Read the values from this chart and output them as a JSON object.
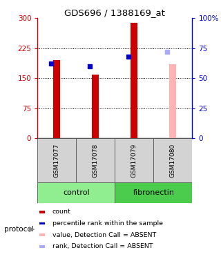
{
  "title": "GDS696 / 1388169_at",
  "samples": [
    "GSM17077",
    "GSM17078",
    "GSM17079",
    "GSM17080"
  ],
  "bar_values": [
    195,
    158,
    288,
    null
  ],
  "bar_color": "#cc0000",
  "absent_bar_values": [
    null,
    null,
    null,
    185
  ],
  "absent_bar_color": "#ffb3b3",
  "rank_values": [
    62,
    60,
    68,
    null
  ],
  "rank_absent_values": [
    null,
    null,
    null,
    72
  ],
  "rank_color": "#0000cc",
  "rank_absent_color": "#aaaaff",
  "ylim_left": [
    0,
    300
  ],
  "ylim_right": [
    0,
    100
  ],
  "yticks_left": [
    0,
    75,
    150,
    225,
    300
  ],
  "yticks_right": [
    0,
    25,
    50,
    75,
    100
  ],
  "ytick_labels_left": [
    "0",
    "75",
    "150",
    "225",
    "300"
  ],
  "ytick_labels_right": [
    "0",
    "25",
    "50",
    "75",
    "100%"
  ],
  "control_color": "#90ee90",
  "fibronectin_color": "#4ccc4c",
  "label_bg": "#d3d3d3",
  "protocol_label": "protocol",
  "legend_items": [
    {
      "color": "#cc0000",
      "label": "count"
    },
    {
      "color": "#0000cc",
      "label": "percentile rank within the sample"
    },
    {
      "color": "#ffb3b3",
      "label": "value, Detection Call = ABSENT"
    },
    {
      "color": "#aaaaff",
      "label": "rank, Detection Call = ABSENT"
    }
  ]
}
